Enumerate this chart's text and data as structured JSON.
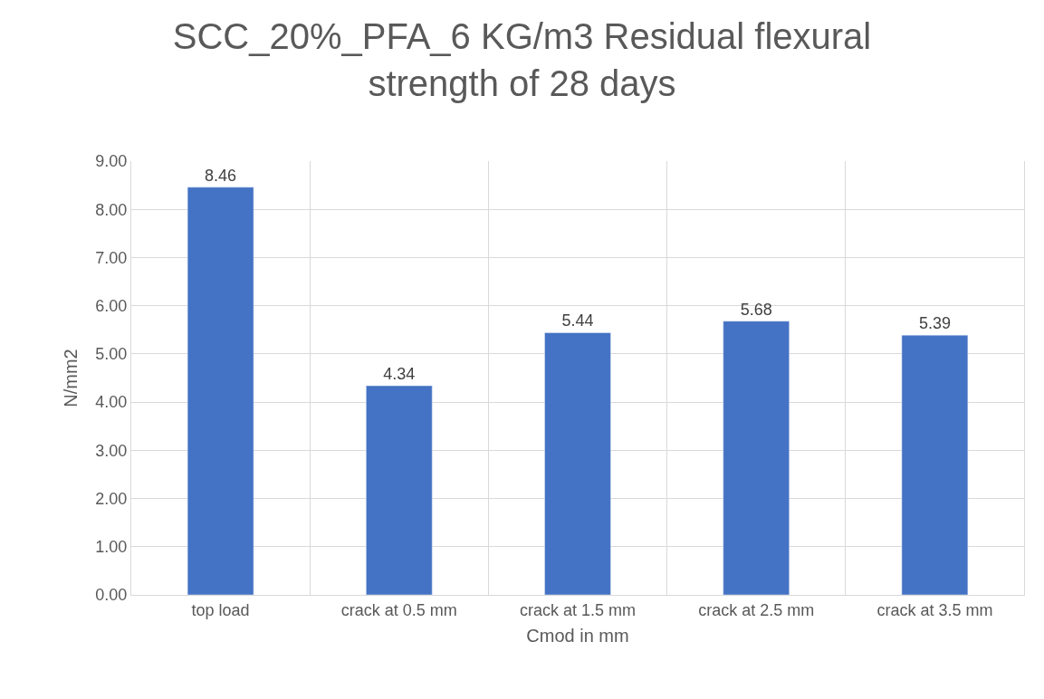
{
  "chart_data": {
    "type": "bar",
    "title": "SCC_20%_PFA_6 KG/m3 Residual flexural strength of 28 days",
    "categories": [
      "top load",
      "crack at 0.5 mm",
      "crack at 1.5 mm",
      "crack at 2.5 mm",
      "crack at 3.5 mm"
    ],
    "values": [
      8.46,
      4.34,
      5.44,
      5.68,
      5.39
    ],
    "color": "#4472c4",
    "xlabel": "Cmod in mm",
    "ylabel": "N/mm2",
    "ylim": [
      0,
      9
    ],
    "yticks": [
      {
        "value": 0,
        "label": "0.00"
      },
      {
        "value": 1,
        "label": "1.00"
      },
      {
        "value": 2,
        "label": "2.00"
      },
      {
        "value": 3,
        "label": "3.00"
      },
      {
        "value": 4,
        "label": "4.00"
      },
      {
        "value": 5,
        "label": "5.00"
      },
      {
        "value": 6,
        "label": "6.00"
      },
      {
        "value": 7,
        "label": "7.00"
      },
      {
        "value": 8,
        "label": "8.00"
      },
      {
        "value": 9,
        "label": "9.00"
      }
    ],
    "grid": true,
    "data_labels": true
  }
}
